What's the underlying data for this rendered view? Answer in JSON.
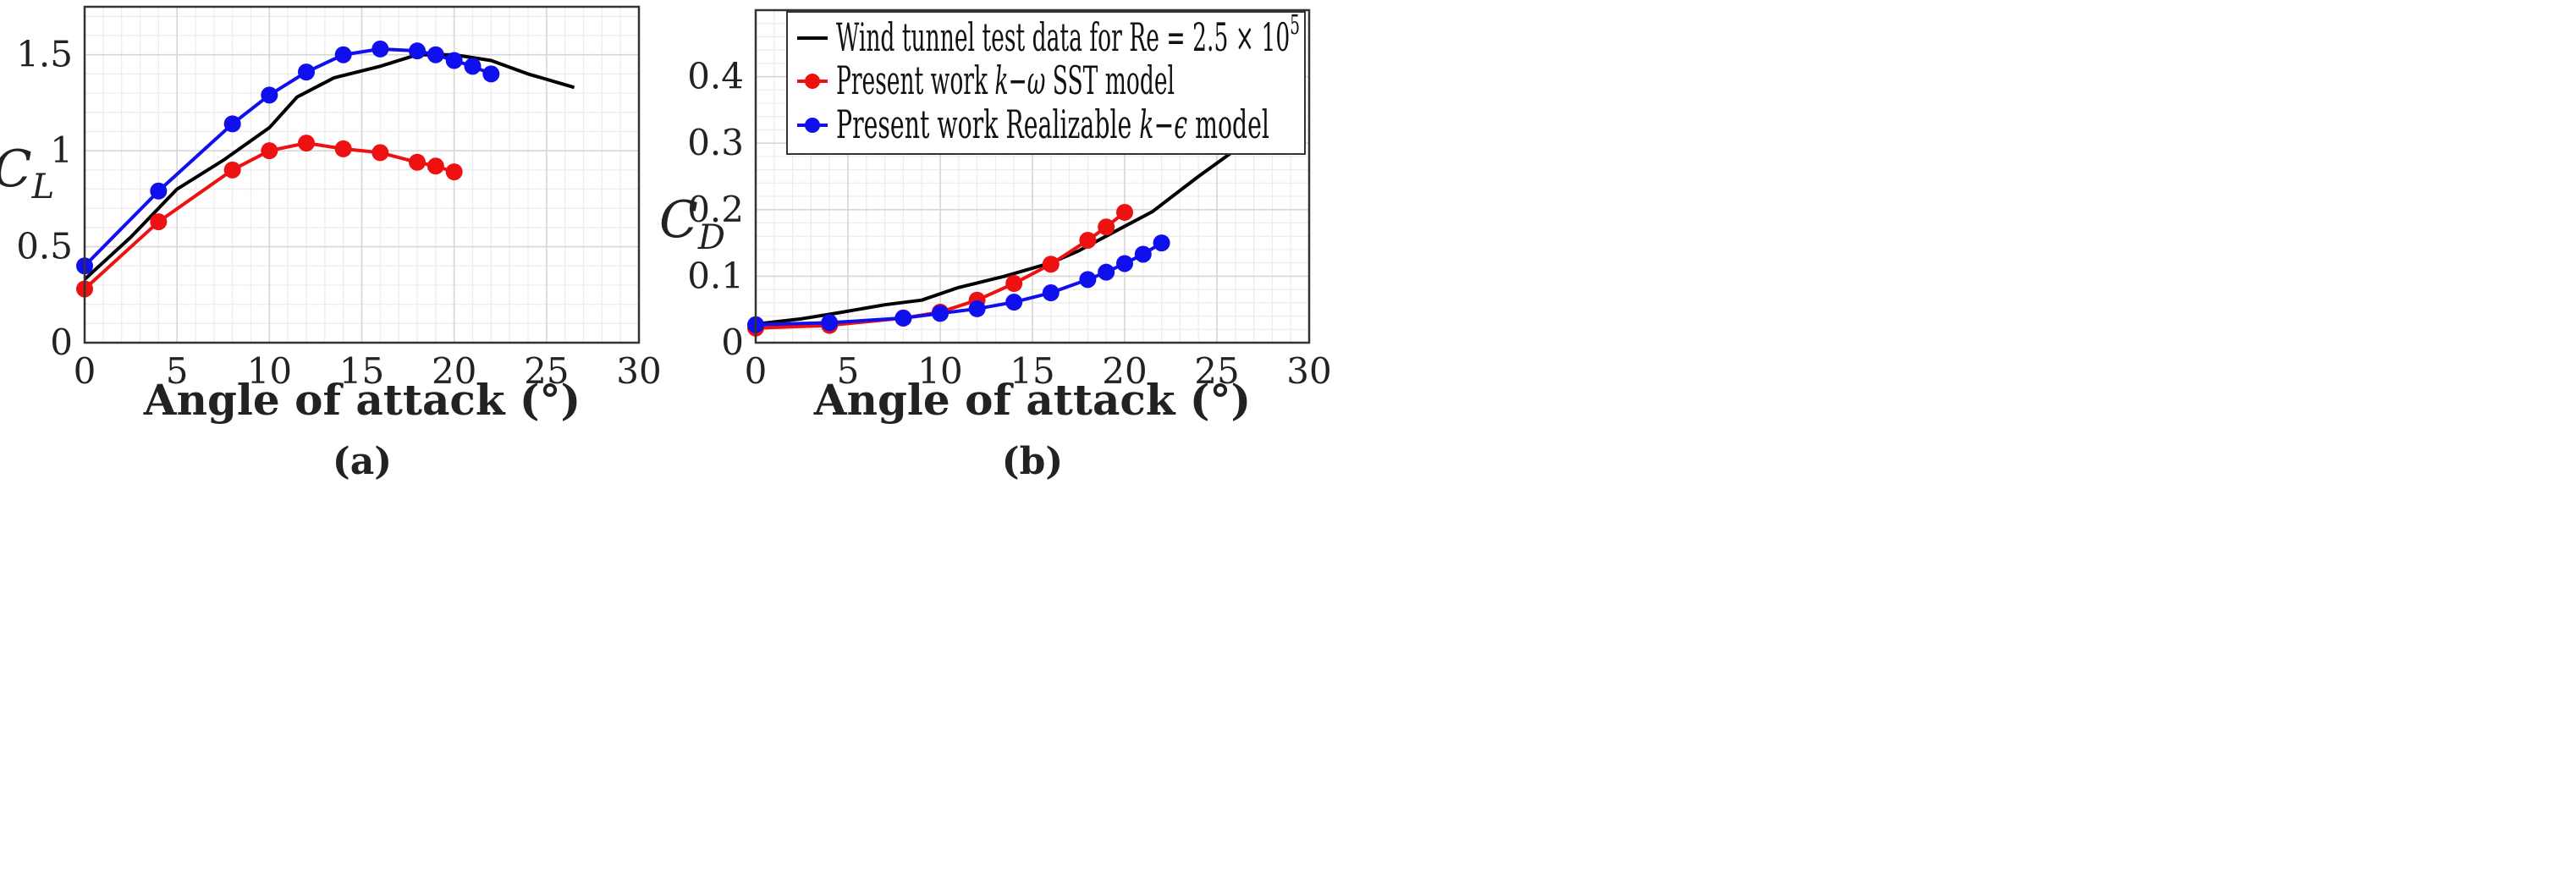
{
  "chart_data": [
    {
      "type": "line",
      "panel": "(a)",
      "xlabel": "Angle of attack (°)",
      "ylabel": "C",
      "ylabel_sub": "L",
      "xlim": [
        0,
        30
      ],
      "ylim": [
        0,
        1.75
      ],
      "xticks": [
        0,
        5,
        10,
        15,
        20,
        25,
        30
      ],
      "xtick_labels": [
        "0",
        "5",
        "10",
        "15",
        "20",
        "25",
        "30"
      ],
      "yticks": [
        0,
        0.5,
        1,
        1.5
      ],
      "ytick_labels": [
        "0",
        "0.5",
        "1",
        "1.5"
      ],
      "grid": true,
      "series": [
        {
          "color": "#000000",
          "markers": false,
          "x": [
            0,
            2.5,
            5,
            7.5,
            10,
            11.5,
            13.5,
            16,
            18,
            20,
            22,
            24,
            26.5
          ],
          "y": [
            0.33,
            0.55,
            0.8,
            0.95,
            1.12,
            1.28,
            1.38,
            1.44,
            1.5,
            1.5,
            1.47,
            1.4,
            1.33
          ]
        },
        {
          "color": "#ee1111",
          "markers": true,
          "x": [
            0,
            4,
            8,
            10,
            12,
            14,
            16,
            18,
            19,
            20
          ],
          "y": [
            0.28,
            0.63,
            0.9,
            1.0,
            1.04,
            1.01,
            0.99,
            0.94,
            0.92,
            0.89
          ]
        },
        {
          "color": "#1010ee",
          "markers": true,
          "x": [
            0,
            4,
            8,
            10,
            12,
            14,
            16,
            18,
            19,
            20,
            21,
            22
          ],
          "y": [
            0.4,
            0.79,
            1.14,
            1.29,
            1.41,
            1.5,
            1.53,
            1.52,
            1.5,
            1.47,
            1.44,
            1.4
          ]
        }
      ]
    },
    {
      "type": "line",
      "panel": "(b)",
      "xlabel": "Angle of attack (°)",
      "ylabel": "C",
      "ylabel_sub": "D",
      "xlim": [
        0,
        30
      ],
      "ylim": [
        0,
        0.5
      ],
      "xticks": [
        0,
        5,
        10,
        15,
        20,
        25,
        30
      ],
      "xtick_labels": [
        "0",
        "5",
        "10",
        "15",
        "20",
        "25",
        "30"
      ],
      "yticks": [
        0,
        0.1,
        0.2,
        0.3,
        0.4
      ],
      "ytick_labels": [
        "0",
        "0.1",
        "0.2",
        "0.3",
        "0.4"
      ],
      "grid": true,
      "legend": {
        "position": "top-right",
        "entries": [
          {
            "color": "#000000",
            "markers": false,
            "pre": "Wind tunnel test data for Re = 2.5 × 10",
            "sup": "5",
            "italic": "",
            "post": ""
          },
          {
            "color": "#ee1111",
            "markers": true,
            "pre": "Present work ",
            "sup": "",
            "italic": "k−ω",
            "post": " SST model"
          },
          {
            "color": "#1010ee",
            "markers": true,
            "pre": "Present work Realizable ",
            "sup": "",
            "italic": "k−ϵ",
            "post": " model"
          }
        ]
      },
      "series": [
        {
          "color": "#000000",
          "markers": false,
          "x": [
            0,
            2.5,
            4.5,
            7,
            9,
            11,
            13.5,
            16,
            17.5,
            20,
            21.5,
            24,
            26.5
          ],
          "y": [
            0.028,
            0.036,
            0.045,
            0.057,
            0.064,
            0.083,
            0.1,
            0.12,
            0.138,
            0.175,
            0.197,
            0.25,
            0.3
          ]
        },
        {
          "color": "#ee1111",
          "markers": true,
          "x": [
            0,
            4,
            8,
            10,
            12,
            14,
            16,
            18,
            19,
            20
          ],
          "y": [
            0.022,
            0.026,
            0.037,
            0.046,
            0.064,
            0.089,
            0.118,
            0.154,
            0.174,
            0.196
          ]
        },
        {
          "color": "#1010ee",
          "markers": true,
          "x": [
            0,
            4,
            8,
            10,
            12,
            14,
            16,
            18,
            19,
            20,
            21,
            22
          ],
          "y": [
            0.027,
            0.03,
            0.037,
            0.044,
            0.051,
            0.061,
            0.075,
            0.095,
            0.106,
            0.119,
            0.133,
            0.15
          ]
        }
      ]
    }
  ]
}
